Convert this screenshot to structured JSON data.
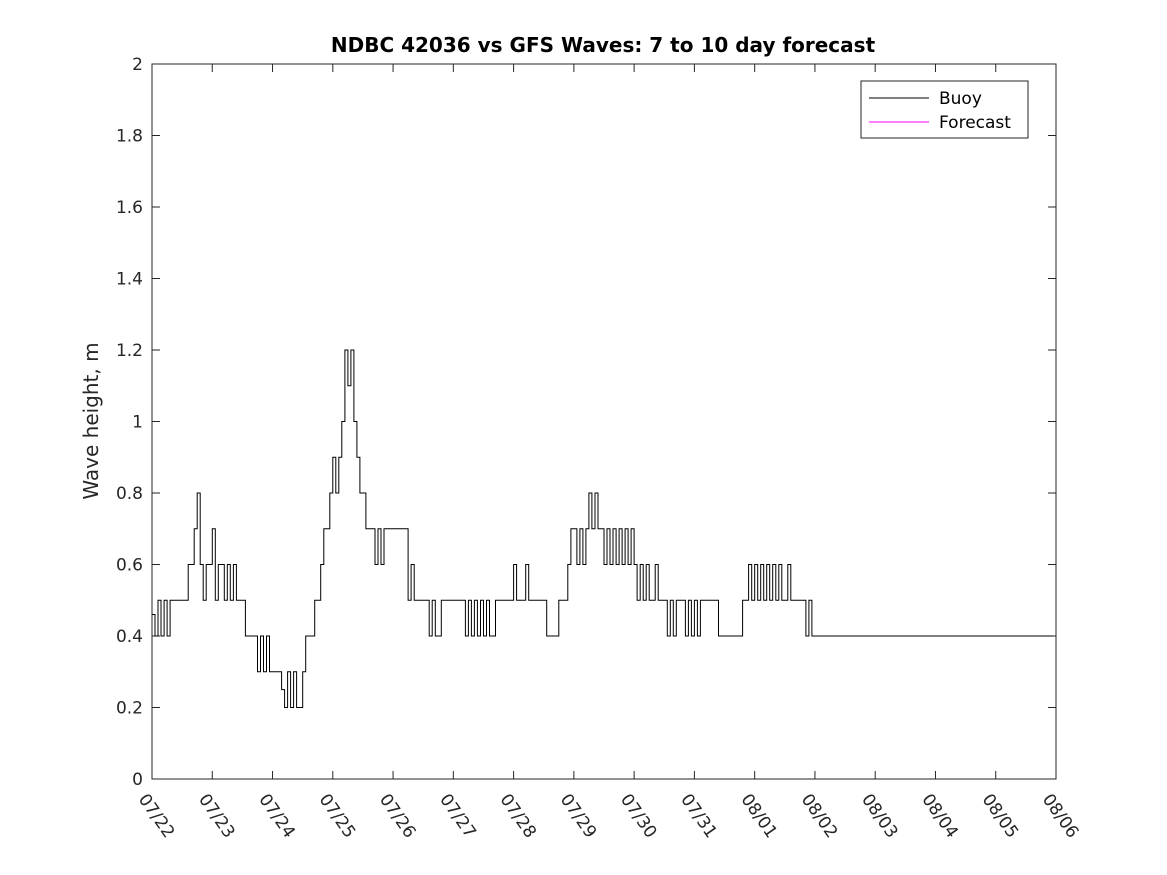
{
  "chart_data": {
    "type": "line",
    "title": "NDBC 42036 vs GFS Waves: 7 to 10 day forecast",
    "xlabel": "",
    "ylabel": "Wave height, m",
    "ylim": [
      0,
      2
    ],
    "xlim": [
      0,
      15
    ],
    "yticks": [
      "0",
      "0.2",
      "0.4",
      "0.6",
      "0.8",
      "1",
      "1.2",
      "1.4",
      "1.6",
      "1.8",
      "2"
    ],
    "xticks": [
      "07/22",
      "07/23",
      "07/24",
      "07/25",
      "07/26",
      "07/27",
      "07/28",
      "07/29",
      "07/30",
      "07/31",
      "08/01",
      "08/02",
      "08/03",
      "08/04",
      "08/05",
      "08/06"
    ],
    "x_unit": "days since 07/22 00:00",
    "legend_position": "top-right",
    "colors": {
      "buoy": "#000000",
      "forecast": "#ff00ff"
    },
    "legend": [
      "Buoy",
      "Forecast"
    ],
    "series": [
      {
        "name": "Buoy",
        "style": "step",
        "points": [
          [
            0.0,
            0.46
          ],
          [
            0.05,
            0.4
          ],
          [
            0.1,
            0.5
          ],
          [
            0.15,
            0.4
          ],
          [
            0.2,
            0.5
          ],
          [
            0.25,
            0.4
          ],
          [
            0.3,
            0.5
          ],
          [
            0.4,
            0.5
          ],
          [
            0.5,
            0.5
          ],
          [
            0.55,
            0.5
          ],
          [
            0.6,
            0.6
          ],
          [
            0.65,
            0.6
          ],
          [
            0.7,
            0.7
          ],
          [
            0.75,
            0.8
          ],
          [
            0.8,
            0.6
          ],
          [
            0.85,
            0.5
          ],
          [
            0.9,
            0.6
          ],
          [
            0.95,
            0.6
          ],
          [
            1.0,
            0.7
          ],
          [
            1.05,
            0.5
          ],
          [
            1.1,
            0.6
          ],
          [
            1.15,
            0.6
          ],
          [
            1.2,
            0.5
          ],
          [
            1.25,
            0.6
          ],
          [
            1.3,
            0.5
          ],
          [
            1.35,
            0.6
          ],
          [
            1.4,
            0.5
          ],
          [
            1.45,
            0.5
          ],
          [
            1.5,
            0.5
          ],
          [
            1.55,
            0.4
          ],
          [
            1.6,
            0.4
          ],
          [
            1.65,
            0.4
          ],
          [
            1.7,
            0.4
          ],
          [
            1.75,
            0.3
          ],
          [
            1.8,
            0.4
          ],
          [
            1.85,
            0.3
          ],
          [
            1.9,
            0.4
          ],
          [
            1.95,
            0.3
          ],
          [
            2.0,
            0.3
          ],
          [
            2.05,
            0.3
          ],
          [
            2.1,
            0.3
          ],
          [
            2.15,
            0.25
          ],
          [
            2.2,
            0.2
          ],
          [
            2.25,
            0.3
          ],
          [
            2.3,
            0.2
          ],
          [
            2.35,
            0.3
          ],
          [
            2.4,
            0.2
          ],
          [
            2.45,
            0.2
          ],
          [
            2.5,
            0.3
          ],
          [
            2.55,
            0.4
          ],
          [
            2.6,
            0.4
          ],
          [
            2.7,
            0.5
          ],
          [
            2.75,
            0.5
          ],
          [
            2.8,
            0.6
          ],
          [
            2.85,
            0.7
          ],
          [
            2.9,
            0.7
          ],
          [
            2.95,
            0.8
          ],
          [
            3.0,
            0.9
          ],
          [
            3.05,
            0.8
          ],
          [
            3.1,
            0.9
          ],
          [
            3.15,
            1.0
          ],
          [
            3.2,
            1.2
          ],
          [
            3.25,
            1.1
          ],
          [
            3.3,
            1.2
          ],
          [
            3.35,
            1.0
          ],
          [
            3.4,
            0.9
          ],
          [
            3.45,
            0.8
          ],
          [
            3.5,
            0.8
          ],
          [
            3.55,
            0.7
          ],
          [
            3.6,
            0.7
          ],
          [
            3.65,
            0.7
          ],
          [
            3.7,
            0.6
          ],
          [
            3.75,
            0.7
          ],
          [
            3.8,
            0.6
          ],
          [
            3.85,
            0.7
          ],
          [
            3.9,
            0.7
          ],
          [
            4.0,
            0.7
          ],
          [
            4.1,
            0.7
          ],
          [
            4.2,
            0.7
          ],
          [
            4.25,
            0.5
          ],
          [
            4.3,
            0.6
          ],
          [
            4.35,
            0.5
          ],
          [
            4.45,
            0.5
          ],
          [
            4.55,
            0.5
          ],
          [
            4.6,
            0.4
          ],
          [
            4.65,
            0.5
          ],
          [
            4.7,
            0.4
          ],
          [
            4.75,
            0.4
          ],
          [
            4.8,
            0.5
          ],
          [
            4.9,
            0.5
          ],
          [
            5.0,
            0.5
          ],
          [
            5.1,
            0.5
          ],
          [
            5.2,
            0.4
          ],
          [
            5.25,
            0.5
          ],
          [
            5.3,
            0.4
          ],
          [
            5.35,
            0.5
          ],
          [
            5.4,
            0.4
          ],
          [
            5.45,
            0.5
          ],
          [
            5.5,
            0.4
          ],
          [
            5.55,
            0.5
          ],
          [
            5.6,
            0.4
          ],
          [
            5.7,
            0.5
          ],
          [
            5.8,
            0.5
          ],
          [
            5.9,
            0.5
          ],
          [
            6.0,
            0.6
          ],
          [
            6.05,
            0.5
          ],
          [
            6.15,
            0.5
          ],
          [
            6.2,
            0.6
          ],
          [
            6.25,
            0.5
          ],
          [
            6.35,
            0.5
          ],
          [
            6.5,
            0.5
          ],
          [
            6.55,
            0.4
          ],
          [
            6.6,
            0.4
          ],
          [
            6.7,
            0.4
          ],
          [
            6.75,
            0.5
          ],
          [
            6.85,
            0.5
          ],
          [
            6.9,
            0.6
          ],
          [
            6.95,
            0.7
          ],
          [
            7.0,
            0.7
          ],
          [
            7.05,
            0.6
          ],
          [
            7.1,
            0.7
          ],
          [
            7.15,
            0.6
          ],
          [
            7.2,
            0.7
          ],
          [
            7.25,
            0.8
          ],
          [
            7.3,
            0.7
          ],
          [
            7.35,
            0.8
          ],
          [
            7.4,
            0.7
          ],
          [
            7.45,
            0.7
          ],
          [
            7.5,
            0.6
          ],
          [
            7.55,
            0.7
          ],
          [
            7.6,
            0.6
          ],
          [
            7.65,
            0.7
          ],
          [
            7.7,
            0.6
          ],
          [
            7.75,
            0.7
          ],
          [
            7.8,
            0.6
          ],
          [
            7.85,
            0.7
          ],
          [
            7.9,
            0.6
          ],
          [
            7.95,
            0.7
          ],
          [
            8.0,
            0.6
          ],
          [
            8.05,
            0.5
          ],
          [
            8.1,
            0.6
          ],
          [
            8.15,
            0.5
          ],
          [
            8.2,
            0.6
          ],
          [
            8.25,
            0.5
          ],
          [
            8.3,
            0.5
          ],
          [
            8.35,
            0.6
          ],
          [
            8.4,
            0.5
          ],
          [
            8.45,
            0.5
          ],
          [
            8.5,
            0.5
          ],
          [
            8.55,
            0.4
          ],
          [
            8.6,
            0.5
          ],
          [
            8.65,
            0.4
          ],
          [
            8.7,
            0.5
          ],
          [
            8.75,
            0.5
          ],
          [
            8.8,
            0.5
          ],
          [
            8.85,
            0.4
          ],
          [
            8.9,
            0.5
          ],
          [
            8.95,
            0.4
          ],
          [
            9.0,
            0.5
          ],
          [
            9.05,
            0.4
          ],
          [
            9.1,
            0.5
          ],
          [
            9.15,
            0.5
          ],
          [
            9.25,
            0.5
          ],
          [
            9.35,
            0.5
          ],
          [
            9.4,
            0.4
          ],
          [
            9.5,
            0.4
          ],
          [
            9.6,
            0.4
          ],
          [
            9.7,
            0.4
          ],
          [
            9.8,
            0.5
          ],
          [
            9.85,
            0.5
          ],
          [
            9.9,
            0.6
          ],
          [
            9.95,
            0.5
          ],
          [
            10.0,
            0.6
          ],
          [
            10.05,
            0.5
          ],
          [
            10.1,
            0.6
          ],
          [
            10.15,
            0.5
          ],
          [
            10.2,
            0.6
          ],
          [
            10.25,
            0.5
          ],
          [
            10.3,
            0.6
          ],
          [
            10.35,
            0.5
          ],
          [
            10.4,
            0.6
          ],
          [
            10.45,
            0.5
          ],
          [
            10.5,
            0.5
          ],
          [
            10.55,
            0.6
          ],
          [
            10.6,
            0.5
          ],
          [
            10.7,
            0.5
          ],
          [
            10.8,
            0.5
          ],
          [
            10.85,
            0.4
          ],
          [
            10.9,
            0.5
          ],
          [
            10.95,
            0.4
          ],
          [
            11.0,
            0.4
          ],
          [
            11.05,
            0.4
          ],
          [
            11.1,
            0.4
          ],
          [
            11.15,
            0.4
          ],
          [
            11.2,
            0.4
          ],
          [
            11.25,
            0.4
          ],
          [
            11.3,
            0.4
          ],
          [
            11.35,
            0.4
          ],
          [
            11.4,
            0.4
          ],
          [
            11.45,
            0.4
          ],
          [
            11.5,
            0.4
          ],
          [
            11.55,
            0.4
          ],
          [
            11.6,
            0.4
          ],
          [
            11.65,
            0.4
          ],
          [
            11.7,
            0.4
          ],
          [
            11.75,
            0.4
          ],
          [
            11.8,
            0.4
          ],
          [
            11.85,
            0.4
          ],
          [
            11.9,
            0.4
          ],
          [
            11.95,
            0.4
          ],
          [
            12.0,
            0.4
          ],
          [
            12.05,
            0.4
          ],
          [
            12.1,
            0.4
          ],
          [
            12.15,
            0.4
          ],
          [
            12.2,
            0.4
          ],
          [
            12.25,
            0.4
          ],
          [
            12.3,
            0.4
          ],
          [
            12.35,
            0.4
          ],
          [
            12.4,
            0.4
          ],
          [
            12.45,
            0.4
          ],
          [
            12.5,
            0.4
          ],
          [
            12.55,
            0.4
          ],
          [
            12.6,
            0.4
          ],
          [
            12.65,
            0.4
          ],
          [
            12.7,
            0.4
          ],
          [
            12.75,
            0.4
          ],
          [
            12.8,
            0.4
          ],
          [
            12.85,
            0.4
          ],
          [
            12.9,
            0.4
          ],
          [
            12.95,
            0.4
          ],
          [
            13.0,
            0.4
          ],
          [
            13.05,
            0.4
          ],
          [
            13.1,
            0.4
          ],
          [
            13.15,
            0.4
          ],
          [
            13.2,
            0.4
          ],
          [
            13.25,
            0.4
          ],
          [
            13.3,
            0.4
          ],
          [
            13.35,
            0.4
          ],
          [
            13.4,
            0.4
          ],
          [
            13.45,
            0.4
          ],
          [
            13.5,
            0.4
          ],
          [
            13.55,
            0.4
          ],
          [
            13.6,
            0.4
          ],
          [
            13.65,
            0.4
          ],
          [
            13.7,
            0.4
          ],
          [
            13.75,
            0.4
          ],
          [
            13.8,
            0.4
          ],
          [
            13.85,
            0.4
          ],
          [
            13.9,
            0.4
          ],
          [
            13.95,
            0.4
          ],
          [
            14.0,
            0.4
          ],
          [
            14.05,
            0.4
          ],
          [
            14.1,
            0.4
          ],
          [
            14.15,
            0.4
          ],
          [
            14.2,
            0.4
          ],
          [
            14.25,
            0.4
          ],
          [
            14.3,
            0.4
          ],
          [
            14.35,
            0.4
          ],
          [
            14.4,
            0.4
          ],
          [
            14.45,
            0.4
          ],
          [
            14.5,
            0.4
          ],
          [
            14.55,
            0.4
          ],
          [
            14.6,
            0.4
          ],
          [
            14.65,
            0.4
          ],
          [
            14.7,
            0.4
          ],
          [
            14.75,
            0.4
          ],
          [
            14.8,
            0.4
          ],
          [
            14.85,
            0.4
          ],
          [
            14.9,
            0.4
          ],
          [
            14.95,
            0.4
          ]
        ]
      }
    ]
  }
}
